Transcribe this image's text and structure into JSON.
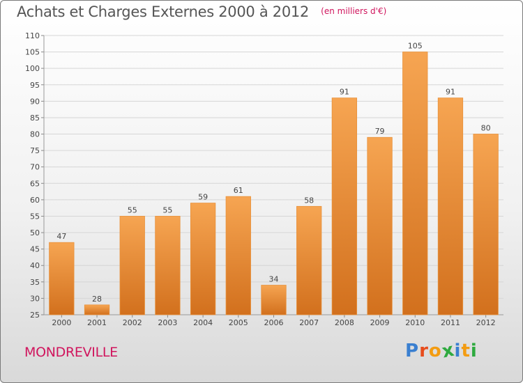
{
  "header": {
    "title": "Achats et Charges Externes 2000 à 2012",
    "unit": "(en milliers d'€)"
  },
  "footer": {
    "town": "MONDREVILLE",
    "logo_letters": [
      "P",
      "r",
      "o",
      "x",
      "i",
      "t",
      "i"
    ],
    "logo_colors": [
      "#3a7fd0",
      "#e74c1c",
      "#f39c12",
      "#2eaa3f",
      "#3a7fd0",
      "#f39c12",
      "#2eaa3f"
    ]
  },
  "colors": {
    "bar_top": "#f6a552",
    "bar_bottom": "#d2701d",
    "accent": "#d0155d"
  },
  "chart_data": {
    "type": "bar",
    "title": "Achats et Charges Externes 2000 à 2012",
    "subtitle": "(en milliers d'€)",
    "xlabel": "",
    "ylabel": "",
    "categories": [
      "2000",
      "2001",
      "2002",
      "2003",
      "2004",
      "2005",
      "2006",
      "2007",
      "2008",
      "2009",
      "2010",
      "2011",
      "2012"
    ],
    "values": [
      47,
      28,
      55,
      55,
      59,
      61,
      34,
      58,
      91,
      79,
      105,
      91,
      80
    ],
    "ylim": [
      25,
      110
    ],
    "yticks": [
      25,
      30,
      35,
      40,
      45,
      50,
      55,
      60,
      65,
      70,
      75,
      80,
      85,
      90,
      95,
      100,
      105,
      110
    ],
    "grid": true,
    "legend": "none"
  }
}
